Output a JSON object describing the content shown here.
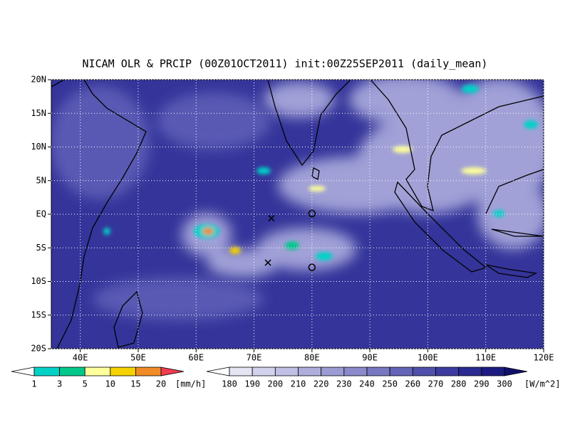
{
  "title": "NICAM OLR & PRCIP (00Z01OCT2011) init:00Z25SEP2011 (daily_mean)",
  "map": {
    "lon_lim": [
      35,
      120
    ],
    "lat_lim": [
      -20,
      20
    ],
    "lon_ticks": [
      {
        "value": 40,
        "label": "40E"
      },
      {
        "value": 50,
        "label": "50E"
      },
      {
        "value": 60,
        "label": "60E"
      },
      {
        "value": 70,
        "label": "70E"
      },
      {
        "value": 80,
        "label": "80E"
      },
      {
        "value": 90,
        "label": "90E"
      },
      {
        "value": 100,
        "label": "100E"
      },
      {
        "value": 110,
        "label": "110E"
      },
      {
        "value": 120,
        "label": "120E"
      }
    ],
    "lat_ticks": [
      {
        "value": 20,
        "label": "20N"
      },
      {
        "value": 15,
        "label": "15N"
      },
      {
        "value": 10,
        "label": "10N"
      },
      {
        "value": 5,
        "label": "5N"
      },
      {
        "value": 0,
        "label": "EQ"
      },
      {
        "value": -5,
        "label": "5S"
      },
      {
        "value": -10,
        "label": "10S"
      },
      {
        "value": -15,
        "label": "15S"
      },
      {
        "value": -20,
        "label": "20S"
      }
    ],
    "grid": true,
    "markers": [
      {
        "lon": 73,
        "lat": -0.6,
        "symbol": "x"
      },
      {
        "lon": 72.4,
        "lat": -7.2,
        "symbol": "x"
      },
      {
        "lon": 80,
        "lat": 0.1,
        "symbol": "o"
      },
      {
        "lon": 80,
        "lat": -7.9,
        "symbol": "o"
      }
    ]
  },
  "legends": [
    {
      "unit": "[mm/h]",
      "levels": [
        1,
        3,
        5,
        10,
        15,
        20
      ],
      "colors": [
        "#ffffff",
        "#00d2c8",
        "#00c88c",
        "#ffff9b",
        "#f5d200",
        "#f08c28",
        "#f03c50"
      ]
    },
    {
      "unit": "[W/m^2]",
      "levels": [
        180,
        190,
        200,
        210,
        220,
        230,
        240,
        250,
        260,
        270,
        280,
        290,
        300
      ],
      "colors": [
        "#ffffff",
        "#e4e4f2",
        "#d2d2ec",
        "#c0c0e4",
        "#aeaedc",
        "#9c9cd4",
        "#8a8acc",
        "#7878c2",
        "#6464b8",
        "#5050ac",
        "#3c3ca0",
        "#2a2a92",
        "#1c1c82",
        "#10106c"
      ]
    }
  ]
}
